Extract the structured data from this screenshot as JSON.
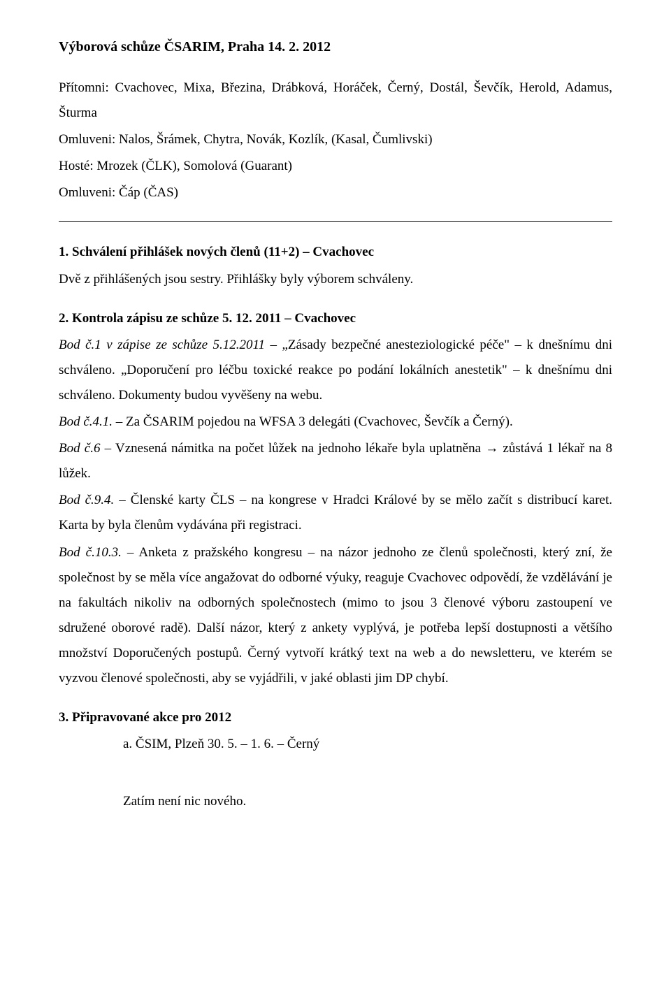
{
  "title": "Výborová schůze ČSARIM, Praha 14. 2. 2012",
  "attend": {
    "pritomni": "Přítomni: Cvachovec, Mixa, Březina, Drábková, Horáček, Černý, Dostál, Ševčík, Herold, Adamus, Šturma",
    "omluveni": "Omluveni: Nalos, Šrámek, Chytra, Novák, Kozlík, (Kasal, Čumlivski)",
    "hoste": "Hosté: Mrozek (ČLK), Somolová (Guarant)",
    "omluveni2": "Omluveni: Čáp (ČAS)"
  },
  "section1": {
    "head": "1. Schválení přihlášek nových členů (11+2) – Cvachovec",
    "line1": "Dvě z přihlášených jsou sestry. Přihlášky byly výborem schváleny."
  },
  "section2": {
    "head": "2. Kontrola zápisu ze schůze 5. 12. 2011 – Cvachovec",
    "p1": {
      "lead_it": "Bod č.1 v zápise ze schůze 5.12.2011",
      "rest": " – „Zásady bezpečné anesteziologické péče\" – k dnešnímu dni schváleno. „Doporučení pro léčbu toxické reakce po podání lokálních anestetik\" – k dnešnímu dni schváleno. Dokumenty budou vyvěšeny na webu."
    },
    "p2": {
      "lead_it": "Bod č.4.1.",
      "rest": " – Za ČSARIM pojedou na WFSA 3 delegáti (Cvachovec, Ševčík a Černý)."
    },
    "p3": {
      "lead_it": "Bod č.6",
      "rest": " – Vznesená námitka na počet lůžek na jednoho lékaře byla uplatněna → zůstává 1 lékař na 8 lůžek."
    },
    "p4": {
      "lead_it": "Bod č.9.4.",
      "rest": " – Členské karty ČLS – na kongrese v Hradci Králové by se mělo začít s distribucí karet. Karta by byla členům vydávána při registraci."
    },
    "p5": {
      "lead_it": "Bod č.10.3.",
      "rest": " – Anketa z pražského kongresu – na názor jednoho ze členů společnosti, který zní, že společnost by se měla více angažovat do odborné výuky, reaguje Cvachovec odpovědí, že vzdělávání je na fakultách nikoliv na odborných společnostech (mimo to jsou 3 členové výboru zastoupení ve sdružené oborové radě). Další názor, který z ankety vyplývá, je potřeba lepší dostupnosti a většího množství Doporučených postupů. Černý vytvoří krátký text na web a do newsletteru, ve kterém se vyzvou členové společnosti, aby se vyjádřili, v jaké oblasti jim DP chybí."
    }
  },
  "section3": {
    "head": "3. Připravované akce pro 2012",
    "item_a": "a.   ČSIM, Plzeň 30. 5. – 1. 6. – Černý",
    "bottom": "Zatím není nic nového."
  }
}
